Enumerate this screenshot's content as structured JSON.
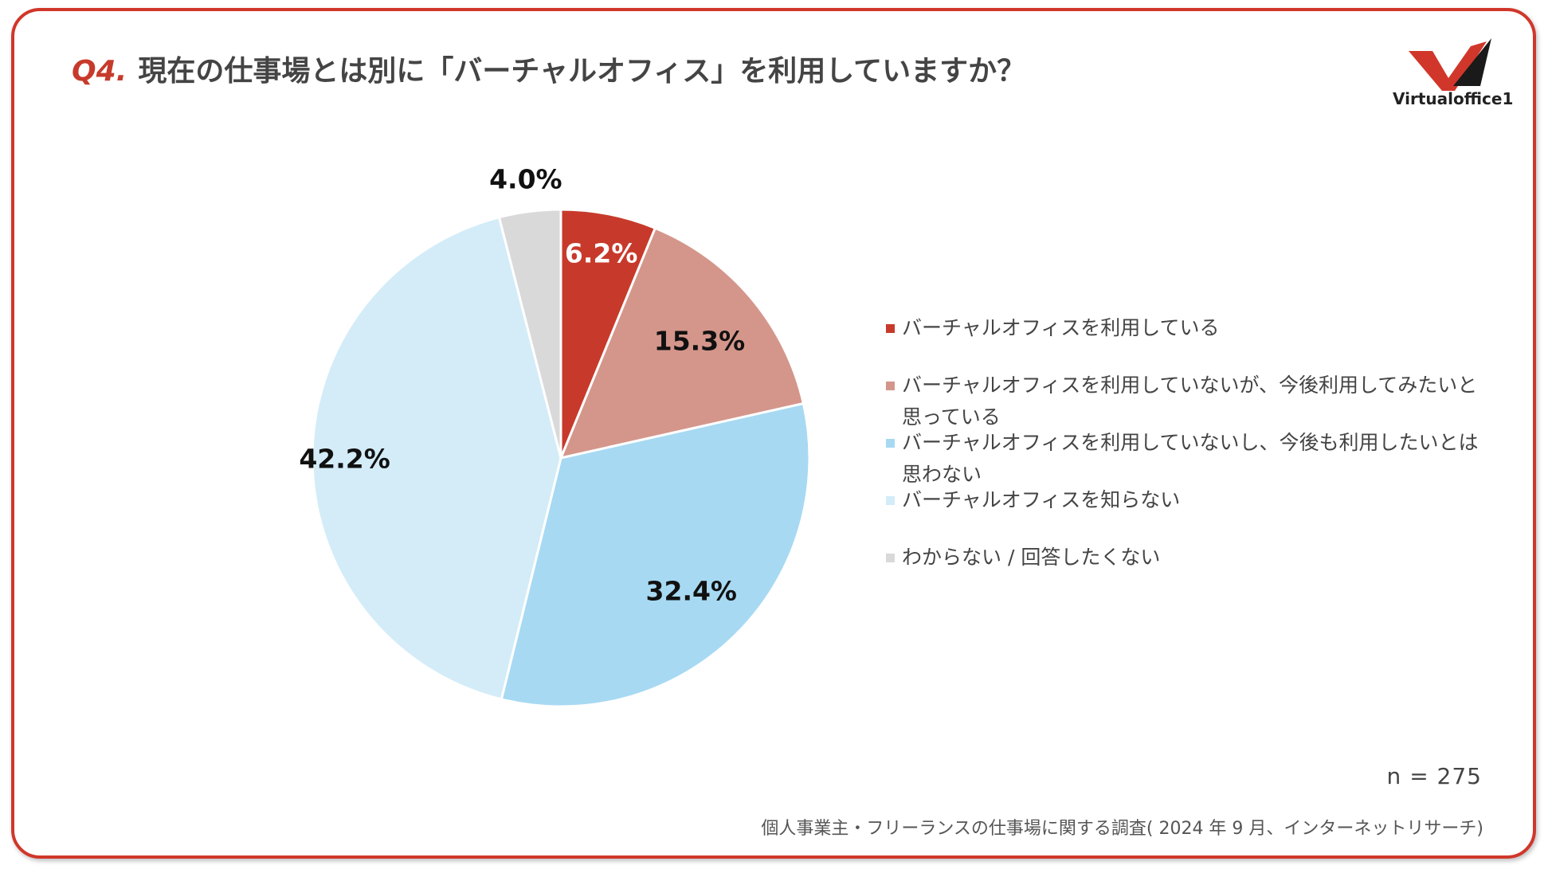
{
  "header": {
    "question_number": "Q4.",
    "question_text": "現在の仕事場とは別に「バーチャルオフィス」を利用していますか？"
  },
  "logo": {
    "brand_text": "Virtualoffice1"
  },
  "chart_data": {
    "type": "pie",
    "title": "現在の仕事場とは別に「バーチャルオフィス」を利用していますか？",
    "start_angle": "12 o'clock",
    "direction": "clockwise",
    "legend_position": "right",
    "slices": [
      {
        "label": "バーチャルオフィスを利用している",
        "value": 6.2,
        "value_label": "6.2%",
        "color": "#c73a2b"
      },
      {
        "label": "バーチャルオフィスを利用していないが、今後利用してみたいと思っている",
        "value": 15.3,
        "value_label": "15.3%",
        "color": "#d4968b"
      },
      {
        "label": "バーチャルオフィスを利用していないし、今後も利用したいとは思わない",
        "value": 32.4,
        "value_label": "32.4%",
        "color": "#a7d9f2"
      },
      {
        "label": "バーチャルオフィスを知らない",
        "value": 42.2,
        "value_label": "42.2%",
        "color": "#d3ecf8"
      },
      {
        "label": "わからない / 回答したくない",
        "value": 4.0,
        "value_label": "4.0%",
        "color": "#d9d9d9"
      }
    ]
  },
  "footer": {
    "sample_size": "n = 275",
    "source": "個人事業主・フリーランスの仕事場に関する調査( 2024 年 9 月、インターネットリサーチ)"
  }
}
